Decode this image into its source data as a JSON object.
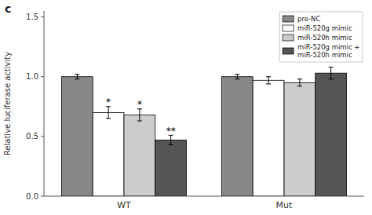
{
  "chart_data": {
    "type": "bar",
    "title": "c",
    "y_label": "Relative luciferase activity",
    "categories": [
      "WT",
      "Mut"
    ],
    "series": [
      {
        "name": "pre-NC",
        "color": "#888888",
        "values": [
          1.0,
          1.0
        ],
        "errors": [
          0.02,
          0.02
        ]
      },
      {
        "name": "miR-520g mimic",
        "color": "#ffffff",
        "values": [
          0.7,
          0.97
        ],
        "errors": [
          0.05,
          0.03
        ]
      },
      {
        "name": "miR-520h mimic",
        "color": "#cccccc",
        "values": [
          0.68,
          0.95
        ],
        "errors": [
          0.05,
          0.03
        ]
      },
      {
        "name": "miR-520g mimic +\nmiR-520h mimic",
        "color": "#555555",
        "values": [
          0.47,
          1.03
        ],
        "errors": [
          0.04,
          0.05
        ]
      }
    ],
    "ylim": [
      0.0,
      1.55
    ],
    "yticks": [
      {
        "value": 0.0,
        "label": "0.0"
      },
      0.5,
      {
        "value": 1.0,
        "label": "1.0"
      },
      1.5
    ],
    "grid": false,
    "legend": "upper right",
    "annotations": [
      {
        "text": "*",
        "category": "WT",
        "series": "miR-520g mimic",
        "y": 0.74
      },
      {
        "text": "*",
        "category": "WT",
        "series": "miR-520h mimic",
        "y": 0.72
      },
      {
        "text": "**",
        "category": "WT",
        "series": "miR-520g mimic +\nmiR-520h mimic",
        "y": 0.5
      }
    ]
  }
}
